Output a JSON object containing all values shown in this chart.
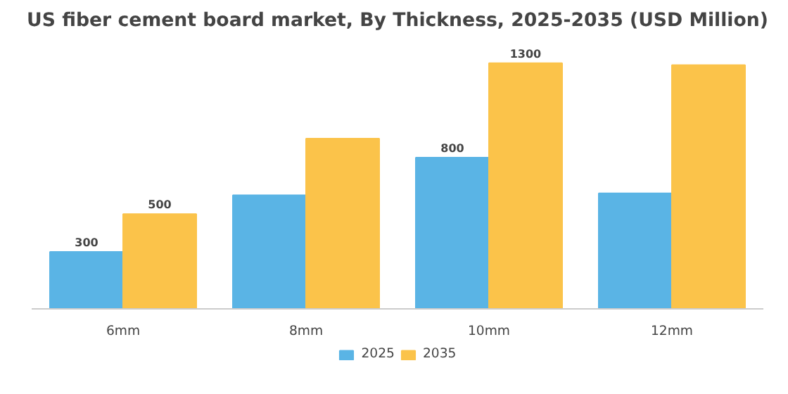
{
  "chart_data": {
    "type": "bar",
    "title": "US fiber cement board market, By Thickness, 2025-2035 (USD Million)",
    "categories": [
      "6mm",
      "8mm",
      "10mm",
      "12mm"
    ],
    "series": [
      {
        "name": "2025",
        "color": "#5ab4e5",
        "values": [
          300,
          600,
          800,
          610
        ],
        "value_labels": [
          "300",
          null,
          "800",
          null
        ]
      },
      {
        "name": "2035",
        "color": "#fbc34a",
        "values": [
          500,
          900,
          1300,
          1290
        ],
        "value_labels": [
          "500",
          null,
          "1300",
          null
        ]
      }
    ],
    "legend": "bottom"
  }
}
